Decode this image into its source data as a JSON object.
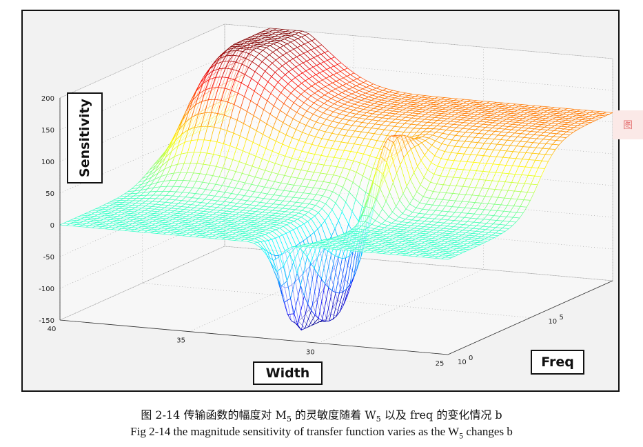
{
  "chart_data": {
    "type": "surface",
    "title": "",
    "xlabel": "Width",
    "ylabel": "Sensitivity",
    "zlabel": "Freq",
    "x_ticks": [
      "40",
      "35",
      "30",
      "25"
    ],
    "y_ticks": [
      "200",
      "150",
      "100",
      "50",
      "0",
      "-50",
      "-100",
      "-150"
    ],
    "z_ticks": [
      "10",
      "10"
    ],
    "z_tick_exponents": [
      "0",
      "5"
    ],
    "xlim": [
      25,
      40
    ],
    "ylim": [
      -150,
      200
    ],
    "zscale": "log",
    "colormap": "jet",
    "description_points": [
      {
        "width": 40,
        "freq_exp": 0,
        "sensitivity": 0
      },
      {
        "width": 30.5,
        "freq_exp": 0,
        "sensitivity": -150
      },
      {
        "width": 30,
        "freq_exp": 1.5,
        "sensitivity": 115
      },
      {
        "width": 40,
        "freq_exp": 6,
        "sensitivity": 190
      },
      {
        "width": 25,
        "freq_exp": 6,
        "sensitivity": 85
      }
    ]
  },
  "caption": {
    "cn_prefix": "图  2-14    传输函数的幅度对 M",
    "cn_sub1": "5",
    "cn_mid": " 的灵敏度随着 W",
    "cn_sub2": "5",
    "cn_suffix": " 以及 freq 的变化情况 b",
    "en_prefix": "Fig 2-14 the magnitude sensitivity of transfer function varies as the W",
    "en_sub": "5",
    "en_suffix": " changes b"
  },
  "badge": "图"
}
